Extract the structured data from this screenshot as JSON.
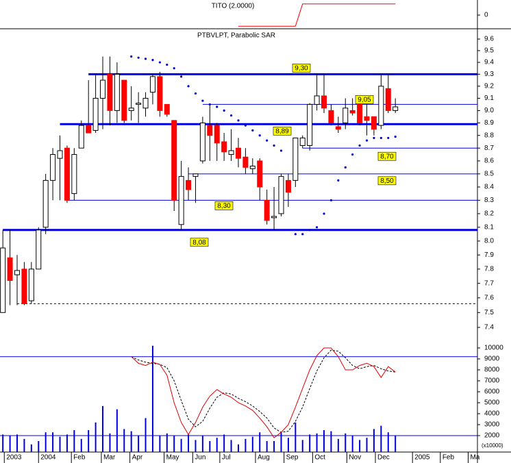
{
  "chart_data": [
    {
      "type": "line",
      "title": "TITO (2.0000)",
      "color": "#ff0000",
      "ylim": [
        -1,
        1
      ],
      "yticks": [
        0
      ],
      "values": [
        null,
        null,
        null,
        null,
        null,
        null,
        null,
        null,
        null,
        null,
        null,
        null,
        null,
        null,
        null,
        null,
        null,
        null,
        null,
        null,
        null,
        null,
        null,
        null,
        null,
        null,
        null,
        null,
        null,
        null,
        null,
        null,
        null,
        -0.9,
        -0.9,
        -0.9,
        -0.9,
        -0.9,
        -0.9,
        -0.9,
        -0.9,
        -0.9,
        0.9,
        0.9,
        0.9,
        0.9,
        0.9,
        0.9,
        0.9,
        0.9,
        0.9,
        0.9,
        0.9,
        0.9,
        0.9,
        0.9
      ]
    },
    {
      "type": "candlestick",
      "title": "PTBVLPT, Parabolic SAR",
      "log_scale": true,
      "up_color": "#ffffff",
      "down_color": "#ff0000",
      "ylim": [
        7.4,
        9.6
      ],
      "yticks": [
        7.4,
        7.5,
        7.6,
        7.7,
        7.8,
        7.9,
        {
          "value": 8,
          "label": "8.0"
        },
        8.1,
        8.2,
        8.3,
        8.4,
        8.5,
        8.6,
        8.7,
        8.8,
        8.9,
        {
          "value": 9,
          "label": "9.0"
        },
        9.1,
        9.2,
        9.3,
        9.4,
        9.5,
        9.6
      ],
      "open": [
        7.5,
        7.88,
        7.76,
        7.8,
        7.58,
        7.8,
        8.1,
        8.45,
        8.62,
        8.7,
        8.35,
        8.7,
        8.88,
        8.84,
        9.1,
        9.3,
        9.0,
        9.25,
        9.0,
        9.05,
        9.02,
        9.15,
        9.28,
        9.05,
        8.92,
        8.12,
        8.45,
        8.48,
        8.6,
        8.88,
        8.88,
        8.75,
        8.65,
        8.7,
        8.63,
        8.54,
        8.6,
        8.3,
        8.17,
        8.2,
        8.45,
        8.45,
        8.72,
        8.72,
        9.05,
        9.12,
        9.0,
        8.87,
        8.9,
        9.0,
        9.05,
        8.95,
        8.95,
        8.88,
        9.18,
        9.0
      ],
      "high": [
        8.08,
        8.08,
        7.9,
        7.85,
        7.85,
        8.1,
        8.5,
        8.7,
        8.8,
        8.72,
        8.7,
        8.92,
        9.25,
        9.3,
        9.45,
        9.45,
        9.4,
        9.25,
        9.2,
        9.15,
        9.15,
        9.3,
        9.32,
        9.05,
        8.92,
        8.6,
        8.55,
        8.5,
        8.95,
        9.05,
        8.9,
        8.82,
        8.85,
        8.78,
        8.7,
        8.62,
        8.62,
        8.38,
        8.4,
        8.5,
        8.5,
        8.78,
        8.8,
        9.06,
        9.3,
        9.3,
        9.05,
        8.95,
        9.1,
        9.1,
        9.12,
        9.05,
        8.95,
        9.3,
        9.3,
        9.1
      ],
      "low": [
        7.5,
        7.55,
        7.55,
        7.55,
        7.56,
        7.8,
        8.05,
        8.3,
        8.3,
        8.28,
        8.3,
        8.7,
        8.82,
        8.82,
        8.85,
        8.88,
        8.9,
        8.9,
        8.92,
        8.9,
        8.95,
        9.05,
        8.95,
        8.95,
        8.22,
        8.08,
        8.3,
        8.28,
        8.58,
        8.6,
        8.6,
        8.6,
        8.6,
        8.55,
        8.5,
        8.5,
        8.3,
        8.12,
        8.08,
        8.18,
        8.25,
        8.4,
        8.7,
        8.68,
        9.0,
        8.98,
        8.88,
        8.82,
        8.85,
        8.96,
        8.88,
        8.8,
        8.8,
        8.85,
        8.98,
        8.98
      ],
      "close": [
        7.95,
        7.72,
        7.79,
        7.56,
        7.8,
        8.08,
        8.45,
        8.65,
        8.68,
        8.3,
        8.65,
        8.88,
        8.82,
        9.1,
        9.25,
        9.0,
        9.3,
        8.92,
        9.02,
        9.06,
        9.1,
        9.28,
        9.0,
        8.97,
        8.3,
        8.48,
        8.38,
        8.5,
        8.9,
        8.8,
        8.74,
        8.67,
        8.68,
        8.62,
        8.55,
        8.56,
        8.4,
        8.15,
        8.18,
        8.48,
        8.36,
        8.78,
        8.78,
        9.05,
        9.12,
        9.02,
        8.9,
        8.85,
        9.02,
        8.98,
        8.9,
        8.92,
        8.85,
        9.2,
        9.0,
        9.03
      ],
      "sar": {
        "color": "#0000cc",
        "values": [
          null,
          null,
          null,
          null,
          null,
          null,
          null,
          null,
          null,
          null,
          null,
          null,
          null,
          null,
          null,
          null,
          null,
          null,
          9.45,
          9.44,
          9.43,
          9.42,
          9.4,
          9.38,
          9.35,
          9.28,
          9.2,
          9.14,
          9.08,
          9.05,
          9.03,
          9.0,
          8.96,
          8.92,
          8.88,
          8.84,
          8.8,
          8.76,
          8.72,
          8.68,
          null,
          8.05,
          8.05,
          8.08,
          8.1,
          8.2,
          8.3,
          8.45,
          8.55,
          8.65,
          8.72,
          8.76,
          8.78,
          8.78,
          8.78,
          8.79
        ]
      },
      "levels": [
        {
          "value": 9.3,
          "label": "9,30",
          "from": 12,
          "style": "bold",
          "color": "#0000e0"
        },
        {
          "value": 8.89,
          "label": "8,89",
          "from": 8,
          "style": "bold",
          "color": "#0000e0"
        },
        {
          "value": 8.08,
          "label": "8,08",
          "from": 0,
          "style": "bold",
          "color": "#0000e0"
        },
        {
          "value": 9.05,
          "label": "9,05",
          "from": 28,
          "style": "thin",
          "color": "#0000e0"
        },
        {
          "value": 8.7,
          "label": "8,70",
          "from": 42,
          "style": "thin",
          "color": "#0000e0"
        },
        {
          "value": 8.5,
          "label": "8,50",
          "from": 26,
          "style": "thin",
          "color": "#0000e0"
        },
        {
          "value": 8.3,
          "label": "8,30",
          "from": 9,
          "style": "thin",
          "color": "#0000e0"
        },
        {
          "value": 7.56,
          "from": 2,
          "style": "dashed",
          "color": "#000080"
        }
      ]
    },
    {
      "type": "volume-stochastic",
      "unit_label": "(x10000)",
      "ylim": [
        500,
        10500
      ],
      "yticks": [
        2000,
        3000,
        4000,
        5000,
        6000,
        7000,
        8000,
        9000,
        10000
      ],
      "ref_lines": [
        9200,
        2000
      ],
      "ref_color": "#0000e0",
      "xlim": [
        -0.4,
        66.5
      ],
      "xticks": [
        {
          "value": 0.2,
          "label": "2003"
        },
        {
          "value": 5.0,
          "label": "2004"
        },
        {
          "value": 9.6,
          "label": "Feb"
        },
        {
          "value": 13.8,
          "label": "Mar"
        },
        {
          "value": 17.8,
          "label": "Apr"
        },
        {
          "value": 22.6,
          "label": "May"
        },
        {
          "value": 26.6,
          "label": "Jun"
        },
        {
          "value": 30.4,
          "label": "Jul"
        },
        {
          "value": 35.4,
          "label": "Aug"
        },
        {
          "value": 39.4,
          "label": "Sep"
        },
        {
          "value": 43.4,
          "label": "Oct"
        },
        {
          "value": 48.2,
          "label": "Nov"
        },
        {
          "value": 52.2,
          "label": "Dec"
        },
        {
          "value": 57.4,
          "label": "2005"
        },
        {
          "value": 61.3,
          "label": "Feb"
        },
        {
          "value": 65.2,
          "label": "Ma"
        }
      ],
      "volume": {
        "color": "#0000e0",
        "values": [
          2100,
          2000,
          2100,
          1700,
          1200,
          1500,
          2300,
          2300,
          1900,
          2100,
          2500,
          1700,
          2500,
          3200,
          4700,
          2200,
          4400,
          2600,
          2400,
          2000,
          3600,
          10200,
          2000,
          2200,
          2000,
          1700,
          2100,
          1600,
          2000,
          1500,
          1800,
          2100,
          1600,
          1200,
          1700,
          1900,
          2300,
          1500,
          1500,
          2300,
          1800,
          3200,
          1600,
          2100,
          2200,
          2500,
          2400,
          1700,
          2200,
          2000,
          1600,
          1800,
          2600,
          2900,
          2300,
          2000
        ]
      },
      "stoch_k": {
        "color": "#e00000",
        "values": [
          null,
          null,
          null,
          null,
          null,
          null,
          null,
          null,
          null,
          null,
          null,
          null,
          null,
          null,
          null,
          null,
          null,
          null,
          9200,
          8600,
          8400,
          8700,
          8500,
          7500,
          5000,
          3200,
          2100,
          3200,
          4600,
          5600,
          6200,
          5800,
          5500,
          5000,
          4700,
          4300,
          3600,
          2800,
          1800,
          2300,
          3000,
          4600,
          6300,
          8000,
          9300,
          10000,
          10000,
          9200,
          8000,
          8000,
          8400,
          8600,
          8300,
          7300,
          8300,
          7800
        ]
      },
      "stoch_d": {
        "color": "#000000",
        "values": [
          null,
          null,
          null,
          null,
          null,
          null,
          null,
          null,
          null,
          null,
          null,
          null,
          null,
          null,
          null,
          null,
          null,
          null,
          9200,
          8900,
          8700,
          8600,
          8500,
          8200,
          7000,
          5200,
          3500,
          2800,
          3300,
          4500,
          5500,
          5900,
          5800,
          5400,
          5100,
          4700,
          4200,
          3600,
          2700,
          2300,
          2400,
          3300,
          4600,
          6300,
          7900,
          9100,
          9800,
          9700,
          9100,
          8400,
          8100,
          8300,
          8400,
          8100,
          7900,
          7800
        ]
      }
    }
  ]
}
